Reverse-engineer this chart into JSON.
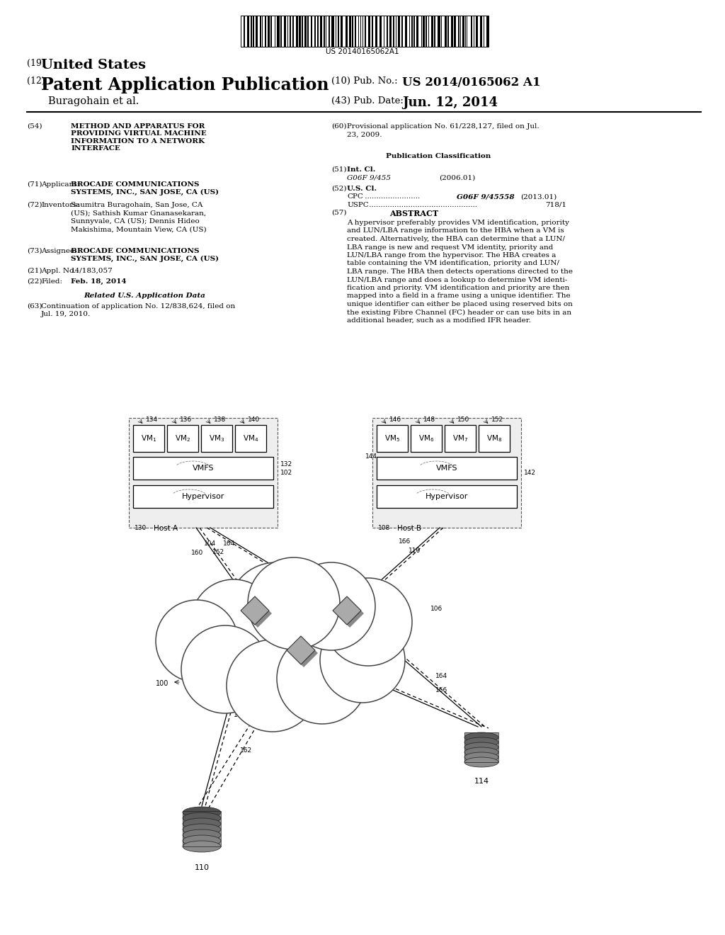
{
  "background_color": "#ffffff",
  "barcode_text": "US 20140165062A1",
  "title_19": "(19) United States",
  "title_12": "(12) Patent Application Publication",
  "pub_no_label": "(10) Pub. No.:",
  "pub_no_value": "US 2014/0165062 A1",
  "author": "Buragohain et al.",
  "pub_date_label": "(43) Pub. Date:",
  "pub_date_value": "Jun. 12, 2014",
  "section54_text": "METHOD AND APPARATUS FOR\nPROVIDING VIRTUAL MACHINE\nINFORMATION TO A NETWORK\nINTERFACE",
  "section71_title": "Applicant:",
  "section71_text_bold": "BROCADE COMMUNICATIONS\nSYSTEMS, INC., SAN JOSE, CA (US)",
  "section72_title": "Inventors:",
  "section72_text": "Saumitra Buragohain, San Jose, CA\n(US); Sathish Kumar Gnanasekaran,\nSunnyvale, CA (US); Dennis Hideo\nMakishima, Mountain View, CA (US)",
  "section73_title": "Assignee:",
  "section73_text_bold": "BROCADE COMMUNICATIONS\nSYSTEMS, INC., SAN JOSE, CA (US)",
  "section21_title": "Appl. No.:",
  "section21_text": "14/183,057",
  "section22_title": "Filed:",
  "section22_text": "Feb. 18, 2014",
  "related_header": "Related U.S. Application Data",
  "section63_text": "Continuation of application No. 12/838,624, filed on\nJul. 19, 2010.",
  "section60_text": "Provisional application No. 61/228,127, filed on Jul.\n23, 2009.",
  "pub_class_header": "Publication Classification",
  "section51_title": "Int. Cl.",
  "section51_text": "G06F 9/455",
  "section51_date": "(2006.01)",
  "section52_title": "U.S. Cl.",
  "section52_cpc_text": "G06F 9/45558",
  "section52_cpc_date": "(2013.01)",
  "section52_uspc_text": "718/1",
  "section57_header": "ABSTRACT",
  "abstract_text": "A hypervisor preferably provides VM identification, priority\nand LUN/LBA range information to the HBA when a VM is\ncreated. Alternatively, the HBA can determine that a LUN/\nLBA range is new and request VM identity, priority and\nLUN/LBA range from the hypervisor. The HBA creates a\ntable containing the VM identification, priority and LUN/\nLBA range. The HBA then detects operations directed to the\nLUN/LBA range and does a lookup to determine VM identi-\nfication and priority. VM identification and priority are then\nmapped into a field in a frame using a unique identifier. The\nunique identifier can either be placed using reserved bits on\nthe existing Fibre Channel (FC) header or can use bits in an\nadditional header, such as a modified IFR header."
}
